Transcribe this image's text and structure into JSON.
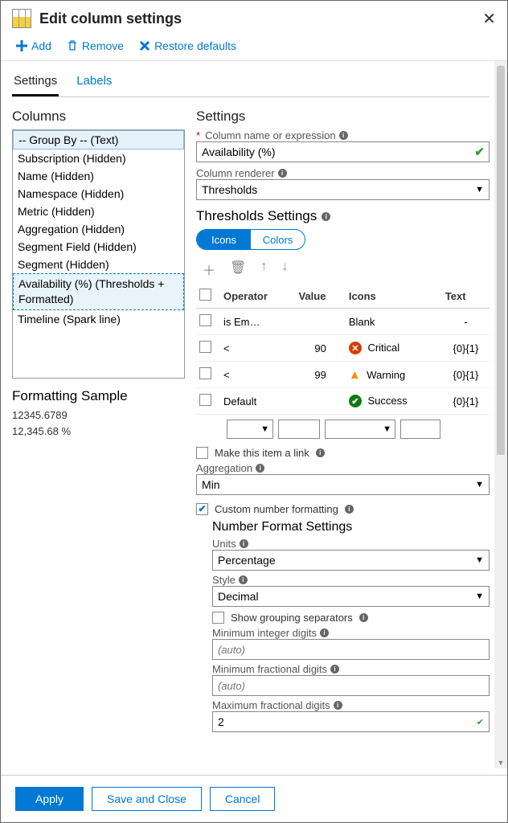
{
  "header": {
    "title": "Edit column settings"
  },
  "toolbar": {
    "add": "Add",
    "remove": "Remove",
    "restore": "Restore defaults"
  },
  "tabs": {
    "settings": "Settings",
    "labels": "Labels"
  },
  "columns": {
    "heading": "Columns",
    "items": [
      "-- Group By -- (Text)",
      "Subscription (Hidden)",
      "Name (Hidden)",
      "Namespace (Hidden)",
      "Metric (Hidden)",
      "Aggregation (Hidden)",
      "Segment Field (Hidden)",
      "Segment (Hidden)",
      "Availability (%) (Thresholds + Formatted)",
      "Timeline (Spark line)"
    ]
  },
  "sample": {
    "heading": "Formatting Sample",
    "line1": "12345.6789",
    "line2": "12,345.68 %"
  },
  "settings": {
    "heading": "Settings",
    "colname_label": "Column name or expression",
    "colname_value": "Availability (%)",
    "renderer_label": "Column renderer",
    "renderer_value": "Thresholds"
  },
  "thresholds": {
    "heading": "Thresholds Settings",
    "pill_icons": "Icons",
    "pill_colors": "Colors",
    "headers": {
      "operator": "Operator",
      "value": "Value",
      "icons": "Icons",
      "text": "Text"
    },
    "rows": [
      {
        "op": "is Em…",
        "val": "",
        "icon": "blank",
        "icon_label": "Blank",
        "text": "-"
      },
      {
        "op": "<",
        "val": "90",
        "icon": "critical",
        "icon_label": "Critical",
        "text": "{0}{1}"
      },
      {
        "op": "<",
        "val": "99",
        "icon": "warning",
        "icon_label": "Warning",
        "text": "{0}{1}"
      },
      {
        "op": "Default",
        "val": "",
        "icon": "success",
        "icon_label": "Success",
        "text": "{0}{1}"
      }
    ]
  },
  "make_link": "Make this item a link",
  "aggregation": {
    "label": "Aggregation",
    "value": "Min"
  },
  "custom_fmt": "Custom number formatting",
  "nfs": {
    "heading": "Number Format Settings",
    "units_label": "Units",
    "units_value": "Percentage",
    "style_label": "Style",
    "style_value": "Decimal",
    "grouping": "Show grouping separators",
    "min_int": "Minimum integer digits",
    "min_frac": "Minimum fractional digits",
    "max_frac": "Maximum fractional digits",
    "auto": "(auto)",
    "max_frac_value": "2"
  },
  "footer": {
    "apply": "Apply",
    "save": "Save and Close",
    "cancel": "Cancel"
  }
}
